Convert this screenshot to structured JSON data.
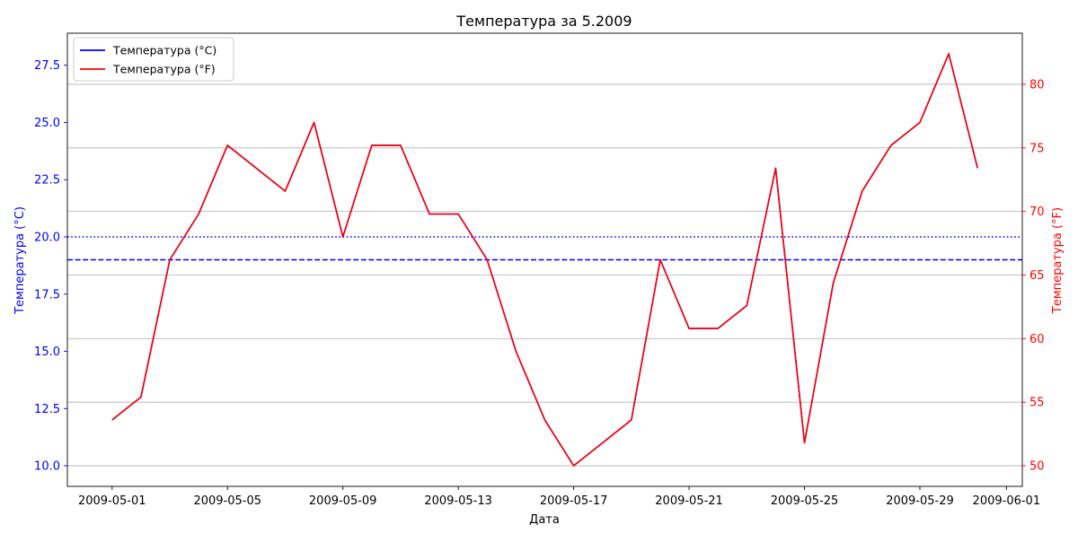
{
  "chart_data": {
    "type": "line",
    "title": "Температура за 5.2009",
    "xlabel": "Дата",
    "ylabel_left": "Температура (°C)",
    "ylabel_right": "Температура (°F)",
    "x": [
      "2009-05-01",
      "2009-05-02",
      "2009-05-03",
      "2009-05-04",
      "2009-05-05",
      "2009-05-06",
      "2009-05-07",
      "2009-05-08",
      "2009-05-09",
      "2009-05-10",
      "2009-05-11",
      "2009-05-12",
      "2009-05-13",
      "2009-05-14",
      "2009-05-15",
      "2009-05-16",
      "2009-05-17",
      "2009-05-18",
      "2009-05-19",
      "2009-05-20",
      "2009-05-21",
      "2009-05-22",
      "2009-05-23",
      "2009-05-24",
      "2009-05-25",
      "2009-05-26",
      "2009-05-27",
      "2009-05-28",
      "2009-05-29",
      "2009-05-30",
      "2009-05-31"
    ],
    "series": [
      {
        "name": "Температура (°C)",
        "axis": "left",
        "color": "#0000ff",
        "values": [
          12,
          13,
          19,
          21,
          24,
          23,
          22,
          25,
          20,
          24,
          24,
          21,
          21,
          19,
          15,
          12,
          10,
          11,
          12,
          19,
          16,
          16,
          17,
          23,
          11,
          18,
          22,
          24,
          25,
          28,
          23
        ]
      },
      {
        "name": "Температура (°F)",
        "axis": "right",
        "color": "#ff0000",
        "values": [
          53.6,
          55.4,
          66.2,
          69.8,
          75.2,
          73.4,
          71.6,
          77.0,
          68.0,
          75.2,
          75.2,
          69.8,
          69.8,
          66.2,
          59.0,
          53.6,
          50.0,
          51.8,
          53.6,
          66.2,
          60.8,
          60.8,
          62.6,
          73.4,
          51.8,
          64.4,
          71.6,
          75.2,
          77.0,
          82.4,
          73.4
        ]
      }
    ],
    "reference_lines": [
      {
        "axis": "left",
        "value": 20,
        "style": "dotted",
        "color": "#0000ff"
      },
      {
        "axis": "left",
        "value": 19,
        "style": "dashed",
        "color": "#0000ff"
      }
    ],
    "x_ticks": [
      "2009-05-01",
      "2009-05-05",
      "2009-05-09",
      "2009-05-13",
      "2009-05-17",
      "2009-05-21",
      "2009-05-25",
      "2009-05-29",
      "2009-06-01"
    ],
    "ylim_left": [
      9.1,
      28.9
    ],
    "ylim_right": [
      48.38,
      84.02
    ],
    "y_ticks_left": [
      "10.0",
      "12.5",
      "15.0",
      "17.5",
      "20.0",
      "22.5",
      "25.0",
      "27.5"
    ],
    "y_ticks_right": [
      "50",
      "55",
      "60",
      "65",
      "70",
      "75",
      "80"
    ],
    "grid": "horizontal (right axis)",
    "legend_position": "top-left"
  }
}
